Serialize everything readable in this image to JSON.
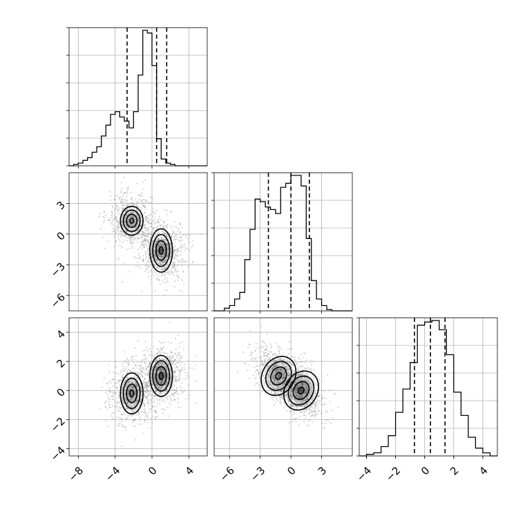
{
  "chart_data": {
    "type": "corner",
    "parameters": [
      {
        "name": "",
        "range": [
          -9,
          6
        ],
        "ticks": [
          -8,
          -4,
          0,
          4
        ],
        "quantiles": [
          -2.7,
          0.5,
          1.6
        ]
      },
      {
        "name": "",
        "range": [
          -7.5,
          6
        ],
        "ticks": [
          -6,
          -3,
          0,
          3
        ],
        "quantiles": [
          -2.2,
          0.0,
          1.8
        ]
      },
      {
        "name": "",
        "range": [
          -4.5,
          5
        ],
        "ticks": [
          -4,
          -2,
          0,
          2,
          4
        ],
        "quantiles": [
          -0.7,
          0.4,
          1.4
        ]
      }
    ],
    "histograms": [
      {
        "edges": [
          -9,
          -8.5,
          -8,
          -7.5,
          -7,
          -6.5,
          -6,
          -5.5,
          -5,
          -4.5,
          -4,
          -3.5,
          -3,
          -2.5,
          -2,
          -1.5,
          -1,
          -0.5,
          0,
          0.5,
          1,
          1.5,
          2,
          2.5,
          3,
          3.5,
          4,
          4.5,
          5,
          5.5,
          6
        ],
        "counts": [
          0,
          1,
          2,
          4,
          6,
          10,
          14,
          22,
          30,
          38,
          40,
          36,
          33,
          28,
          40,
          67,
          100,
          98,
          74,
          20,
          5,
          2,
          1,
          0,
          0,
          0,
          0,
          0,
          0,
          0
        ]
      },
      {
        "edges": [
          -7.5,
          -7,
          -6.5,
          -6,
          -5.5,
          -5,
          -4.5,
          -4,
          -3.5,
          -3,
          -2.5,
          -2,
          -1.5,
          -1,
          -0.5,
          0,
          0.5,
          1,
          1.5,
          2,
          2.5,
          3,
          3.5,
          4,
          4.5,
          5,
          5.5,
          6
        ],
        "counts": [
          0,
          0,
          2,
          4,
          9,
          14,
          39,
          62,
          85,
          83,
          79,
          77,
          74,
          94,
          97,
          103,
          103,
          95,
          55,
          23,
          9,
          4,
          1,
          0,
          0,
          0,
          0
        ]
      },
      {
        "edges": [
          -4.5,
          -4,
          -3.5,
          -3,
          -2.5,
          -2,
          -1.5,
          -1,
          -0.5,
          0,
          0.5,
          1,
          1.5,
          2,
          2.5,
          3,
          3.5,
          4,
          4.5,
          5
        ],
        "counts": [
          0,
          1,
          2,
          6,
          13,
          28,
          43,
          60,
          84,
          86,
          87,
          81,
          65,
          41,
          26,
          12,
          5,
          2,
          0
        ]
      }
    ],
    "pairs": [
      {
        "x_param": 0,
        "y_param": 1,
        "modes": [
          {
            "x": -2.2,
            "y": 1.3,
            "weight": 0.45
          },
          {
            "x": 1.0,
            "y": -1.6,
            "weight": 0.55
          }
        ]
      },
      {
        "x_param": 0,
        "y_param": 2,
        "modes": [
          {
            "x": -2.2,
            "y": -0.2,
            "weight": 0.45
          },
          {
            "x": 1.0,
            "y": 1.0,
            "weight": 0.55
          }
        ]
      },
      {
        "x_param": 1,
        "y_param": 2,
        "modes": [
          {
            "x": -1.2,
            "y": 1.0,
            "weight": 0.5
          },
          {
            "x": 1.0,
            "y": 0.0,
            "weight": 0.5
          }
        ]
      }
    ],
    "grid": true,
    "title": "",
    "legend": "none"
  }
}
